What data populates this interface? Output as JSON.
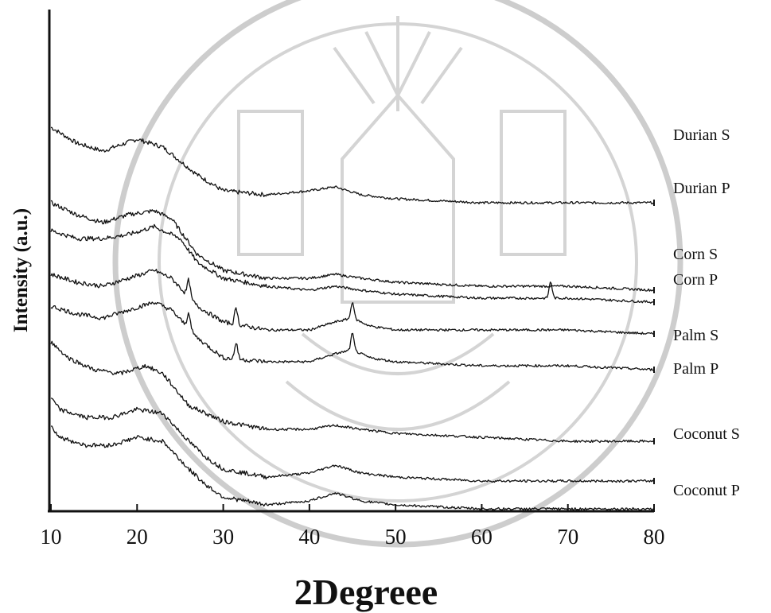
{
  "chart_data": {
    "type": "line",
    "xlabel": "2Degreee",
    "ylabel": "Intensity (a.u.)",
    "xlim": [
      10,
      80
    ],
    "xticks": [
      10,
      20,
      30,
      40,
      50,
      60,
      70,
      80
    ],
    "grid": false,
    "y_scale": "arbitrary units, stacked offset traces",
    "series": [
      {
        "name": "Durian S",
        "x": [
          10,
          13,
          16,
          20,
          23,
          27,
          30,
          35,
          40,
          43,
          46,
          50,
          60,
          70,
          80
        ],
        "y": [
          92,
          88,
          86,
          89,
          87,
          80,
          76,
          75,
          76,
          77,
          75,
          74,
          73,
          73,
          73
        ],
        "peaks": []
      },
      {
        "name": "Durian P",
        "x": [
          10,
          13,
          16,
          19,
          22,
          24,
          27,
          30,
          35,
          40,
          43,
          46,
          50,
          60,
          70,
          80
        ],
        "y": [
          73,
          70,
          68,
          70,
          71,
          69,
          60,
          56,
          54,
          54,
          55,
          54,
          53,
          52,
          52,
          51
        ],
        "peaks": []
      },
      {
        "name": "Corn S",
        "x": [
          10,
          13,
          16,
          19,
          22,
          25,
          27,
          30,
          35,
          40,
          43,
          46,
          50,
          60,
          70,
          80
        ],
        "y": [
          66,
          64,
          64,
          65,
          67,
          64,
          58,
          54,
          52,
          51,
          52,
          51,
          50,
          49,
          49,
          48
        ],
        "peaks": [
          68
        ]
      },
      {
        "name": "Corn P",
        "x": [
          10,
          13,
          16,
          19,
          22,
          24,
          27,
          30,
          35,
          40,
          43,
          45,
          47,
          50,
          60,
          70,
          80
        ],
        "y": [
          55,
          53,
          52,
          54,
          56,
          54,
          47,
          43,
          41,
          41,
          43,
          44,
          42,
          41,
          41,
          41,
          40
        ],
        "peaks": [
          26,
          31.5,
          45
        ]
      },
      {
        "name": "Palm S",
        "x": [
          10,
          13,
          16,
          19,
          22,
          24,
          27,
          30,
          35,
          40,
          43,
          45,
          47,
          50,
          60,
          70,
          80
        ],
        "y": [
          47,
          45,
          44,
          46,
          48,
          46,
          39,
          34,
          33,
          33,
          35,
          36,
          34,
          33,
          32,
          32,
          31
        ],
        "peaks": [
          26,
          31.5,
          45
        ]
      },
      {
        "name": "Palm P",
        "x": [
          10,
          12,
          15,
          18,
          21,
          23,
          26,
          30,
          35,
          40,
          43,
          46,
          50,
          60,
          70,
          80
        ],
        "y": [
          38,
          34,
          31,
          30,
          32,
          30,
          22,
          18,
          16,
          16,
          17,
          16,
          15,
          14,
          13,
          13
        ],
        "peaks": []
      },
      {
        "name": "Coconut S",
        "x": [
          10,
          11,
          14,
          17,
          20,
          23,
          26,
          28,
          30,
          35,
          40,
          43,
          46,
          50,
          60,
          70,
          80
        ],
        "y": [
          24,
          21,
          19,
          19,
          21,
          20,
          13,
          9,
          6,
          4,
          5,
          7,
          5,
          4,
          3,
          3,
          3
        ],
        "peaks": []
      },
      {
        "name": "Coconut P",
        "x": [
          10,
          11,
          14,
          17,
          20,
          23,
          26,
          28,
          30,
          35,
          40,
          43,
          46,
          50,
          60,
          70,
          80
        ],
        "y": [
          17,
          14,
          12,
          12,
          14,
          13,
          6,
          2,
          -1,
          -3,
          -2,
          0,
          -2,
          -3,
          -4,
          -4,
          -4
        ],
        "peaks": []
      }
    ]
  }
}
